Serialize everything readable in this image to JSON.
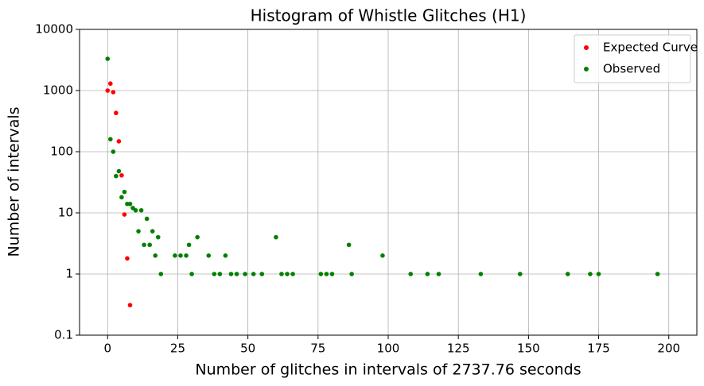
{
  "chart_data": {
    "type": "scatter",
    "title": "Histogram of Whistle Glitches (H1)",
    "xlabel": "Number of glitches in intervals of 2737.76 seconds",
    "ylabel": "Number of intervals",
    "yscale": "log",
    "grid": true,
    "legend": "upper right",
    "xlim": [
      -10,
      210
    ],
    "ylim": [
      0.1,
      10000
    ],
    "xticks": [
      0,
      25,
      50,
      75,
      100,
      125,
      150,
      175,
      200
    ],
    "yticks": [
      0.1,
      1,
      10,
      100,
      1000,
      10000
    ],
    "series": [
      {
        "name": "Expected Curve",
        "color": "#ff0000",
        "x": [
          0,
          1,
          2,
          3,
          4,
          5,
          6,
          7,
          8
        ],
        "values": [
          1000,
          1300,
          940,
          430,
          148,
          41,
          9.4,
          1.8,
          0.31
        ]
      },
      {
        "name": "Observed",
        "color": "#008000",
        "x": [
          0,
          1,
          2,
          3,
          4,
          5,
          6,
          7,
          8,
          9,
          10,
          11,
          12,
          13,
          14,
          15,
          16,
          17,
          18,
          19,
          24,
          26,
          28,
          29,
          30,
          32,
          36,
          38,
          40,
          42,
          44,
          46,
          49,
          52,
          55,
          60,
          62,
          64,
          66,
          76,
          78,
          80,
          86,
          87,
          98,
          108,
          114,
          118,
          133,
          147,
          164,
          172,
          175,
          196
        ],
        "values": [
          3300,
          160,
          100,
          40,
          48,
          18,
          22,
          14,
          14,
          12,
          11,
          5,
          11,
          3,
          8,
          3,
          5,
          2,
          4,
          1,
          2,
          2,
          2,
          3,
          1,
          4,
          2,
          1,
          1,
          2,
          1,
          1,
          1,
          1,
          1,
          4,
          1,
          1,
          1,
          1,
          1,
          1,
          3,
          1,
          2,
          1,
          1,
          1,
          1,
          1,
          1,
          1,
          1,
          1
        ]
      }
    ]
  }
}
